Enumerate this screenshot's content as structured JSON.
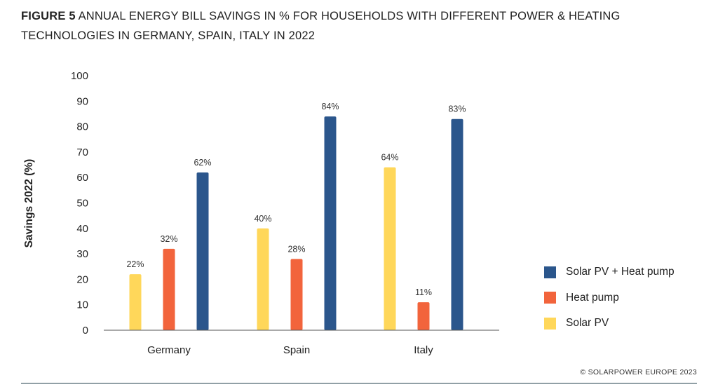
{
  "figure": {
    "label": "FIGURE 5",
    "title": "ANNUAL ENERGY BILL SAVINGS IN % FOR HOUSEHOLDS WITH DIFFERENT POWER & HEATING TECHNOLOGIES IN GERMANY, SPAIN, ITALY IN 2022"
  },
  "copyright": "© SOLARPOWER EUROPE 2023",
  "colors": {
    "solar_pv": "#FFD75A",
    "heat_pump": "#F2643C",
    "solar_pv_heat_pump": "#2B568C",
    "axis": "#555555",
    "text": "#222222"
  },
  "chart_data": {
    "type": "bar",
    "title": "ANNUAL ENERGY BILL SAVINGS IN % FOR HOUSEHOLDS WITH DIFFERENT POWER & HEATING TECHNOLOGIES IN GERMANY, SPAIN, ITALY IN 2022",
    "xlabel": "",
    "ylabel": "Savings 2022 (%)",
    "ylim": [
      0,
      100
    ],
    "yticks": [
      0,
      10,
      20,
      30,
      40,
      50,
      60,
      70,
      80,
      90,
      100
    ],
    "grid": false,
    "legend_position": "right",
    "categories": [
      "Germany",
      "Spain",
      "Italy"
    ],
    "series": [
      {
        "name": "Solar PV",
        "color": "#FFD75A",
        "values": [
          22,
          40,
          64
        ],
        "labels": [
          "22%",
          "40%",
          "64%"
        ]
      },
      {
        "name": "Heat pump",
        "color": "#F2643C",
        "values": [
          32,
          28,
          11
        ],
        "labels": [
          "32%",
          "28%",
          "11%"
        ]
      },
      {
        "name": "Solar PV + Heat pump",
        "color": "#2B568C",
        "values": [
          62,
          84,
          83
        ],
        "labels": [
          "62%",
          "84%",
          "83%"
        ]
      }
    ],
    "legend_order": [
      "Solar PV + Heat pump",
      "Heat pump",
      "Solar PV"
    ]
  }
}
